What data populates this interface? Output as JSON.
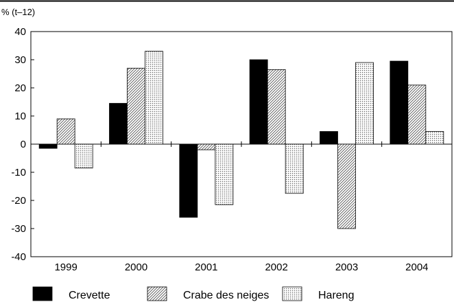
{
  "chart_data": {
    "type": "bar",
    "title": "",
    "unit_label": "% (t–12)",
    "xlabel": "",
    "ylabel": "",
    "ylim": [
      -40,
      40
    ],
    "ytick_step": 10,
    "categories": [
      "1999",
      "2000",
      "2001",
      "2002",
      "2003",
      "2004"
    ],
    "series": [
      {
        "name": "Crevette",
        "pattern": "solid",
        "color": "#000000",
        "values": [
          -1.5,
          14.5,
          -26,
          30,
          4.5,
          29.5
        ]
      },
      {
        "name": "Crabe des neiges",
        "pattern": "diagonal-hatch",
        "color": "#000000",
        "values": [
          9,
          27,
          -2,
          26.5,
          -30,
          21
        ]
      },
      {
        "name": "Hareng",
        "pattern": "dots",
        "color": "#000000",
        "values": [
          -8.5,
          33,
          -21.5,
          -17.5,
          29,
          4.5
        ]
      }
    ],
    "legend_position": "bottom",
    "grid": false
  }
}
